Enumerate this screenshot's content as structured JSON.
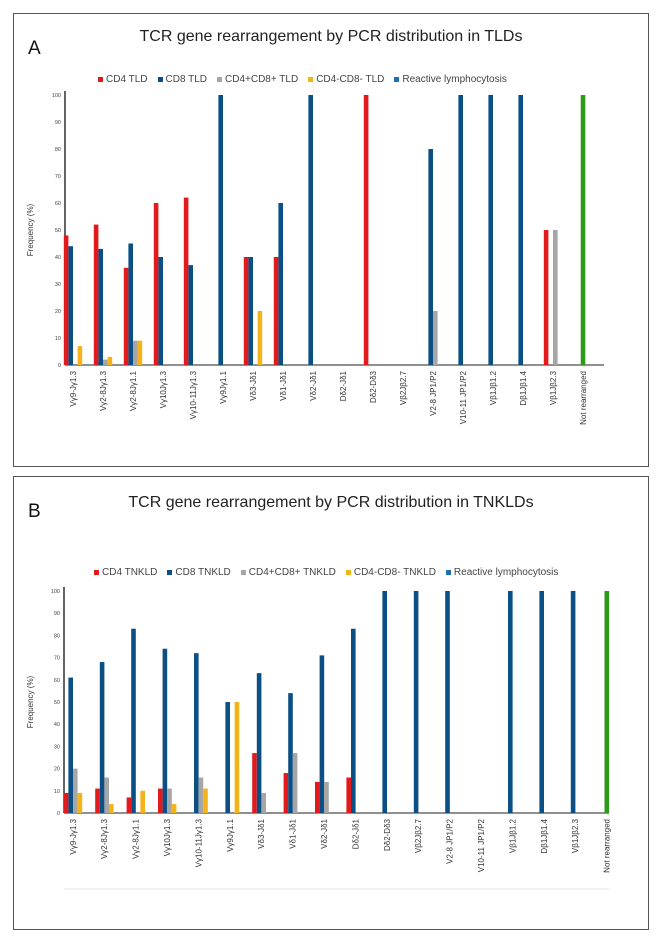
{
  "legend_colors": {
    "cd4": "#e31a1c",
    "cd8": "#0b4f85",
    "dp": "#a6a6a6",
    "dn": "#f5b31a",
    "reactive": "#1f6fb4",
    "not_rearranged": "#2e9a1a"
  },
  "chart_data": [
    {
      "panel": "A",
      "type": "bar",
      "title": "TCR gene rearrangement by PCR distribution in TLDs",
      "ylabel": "Frequency (%)",
      "xlabel": "",
      "ylim": [
        0,
        100
      ],
      "yticks": [
        "0",
        "10",
        "20",
        "30",
        "40",
        "50",
        "60",
        "70",
        "80",
        "90",
        "100"
      ],
      "grid": false,
      "legend_position": "top",
      "categories": [
        "Vγ9-Jγ1.3",
        "Vγ2-8Jγ1.3",
        "Vγ2-8Jγ1.1",
        "Vγ10Jγ1.3",
        "Vγ10-11Jγ1.3",
        "Vγ9Jγ1.1",
        "Vδ3-Jδ1",
        "Vδ1-Jδ1",
        "Vδ2-Jδ1",
        "Dδ2-Jδ1",
        "Dδ2-Dδ3",
        "Vβ2Jβ2.7",
        "V2-8 JP1/P2",
        "V10-11 JP1/P2",
        "Vβ1Jβ1.2",
        "Dβ1Jβ1.4",
        "Vβ1Jβ2.3",
        "Not rearranged"
      ],
      "series": [
        {
          "name": "CD4 TLD",
          "color": "#e31a1c",
          "values": [
            48,
            52,
            36,
            60,
            62,
            0,
            40,
            40,
            0,
            0,
            100,
            0,
            0,
            0,
            0,
            0,
            50,
            0
          ]
        },
        {
          "name": "CD8 TLD",
          "color": "#0b4f85",
          "values": [
            44,
            43,
            45,
            40,
            37,
            100,
            40,
            60,
            100,
            0,
            0,
            0,
            80,
            100,
            100,
            100,
            0,
            0
          ]
        },
        {
          "name": "CD4+CD8+ TLD",
          "color": "#a6a6a6",
          "values": [
            0,
            2,
            9,
            0,
            0,
            0,
            0,
            0,
            0,
            0,
            0,
            0,
            20,
            0,
            0,
            0,
            50,
            0
          ]
        },
        {
          "name": "CD4-CD8- TLD",
          "color": "#f5b31a",
          "values": [
            7,
            3,
            9,
            0,
            0,
            0,
            20,
            0,
            0,
            0,
            0,
            0,
            0,
            0,
            0,
            0,
            0,
            0
          ]
        },
        {
          "name": "Reactive lymphocytosis",
          "color": "#2e9a1a",
          "values": [
            0,
            0,
            0,
            0,
            0,
            0,
            0,
            0,
            0,
            0,
            0,
            0,
            0,
            0,
            0,
            0,
            0,
            100
          ]
        }
      ]
    },
    {
      "panel": "B",
      "type": "bar",
      "title": "TCR gene rearrangement by PCR distribution in TNKLDs",
      "ylabel": "Frequency (%)",
      "xlabel": "",
      "ylim": [
        0,
        100
      ],
      "yticks": [
        "0",
        "10",
        "20",
        "30",
        "40",
        "50",
        "60",
        "70",
        "80",
        "90",
        "100"
      ],
      "grid": false,
      "legend_position": "top",
      "categories": [
        "Vγ9-Jγ1.3",
        "Vγ2-8Jγ1.3",
        "Vγ2-8Jγ1.1",
        "Vγ10Jγ1.3",
        "Vγ10-11Jγ1.3",
        "Vγ9Jγ1.1",
        "Vδ3-Jδ1",
        "Vδ1-Jδ1",
        "Vδ2-Jδ1",
        "Dδ2-Jδ1",
        "Dδ2-Dδ3",
        "Vβ2Jβ2.7",
        "V2-8 JP1/P2",
        "V10-11 JP1/P2",
        "Vβ1Jβ1.2",
        "Dβ1Jβ1.4",
        "Vβ1Jβ2.3",
        "Not rearranged"
      ],
      "series": [
        {
          "name": "CD4 TNKLD",
          "color": "#e31a1c",
          "values": [
            9,
            11,
            7,
            11,
            0,
            0,
            27,
            18,
            14,
            16,
            0,
            0,
            0,
            0,
            0,
            0,
            0,
            0
          ]
        },
        {
          "name": "CD8 TNKLD",
          "color": "#0b4f85",
          "values": [
            61,
            68,
            83,
            74,
            72,
            50,
            63,
            54,
            71,
            83,
            100,
            100,
            100,
            0,
            100,
            100,
            100,
            0
          ]
        },
        {
          "name": "CD4+CD8+ TNKLD",
          "color": "#a6a6a6",
          "values": [
            20,
            16,
            0,
            11,
            16,
            0,
            9,
            27,
            14,
            0,
            0,
            0,
            0,
            0,
            0,
            0,
            0,
            0
          ]
        },
        {
          "name": "CD4-CD8- TNKLD",
          "color": "#f5b31a",
          "values": [
            9,
            4,
            10,
            4,
            11,
            50,
            0,
            0,
            0,
            0,
            0,
            0,
            0,
            0,
            0,
            0,
            0,
            0
          ]
        },
        {
          "name": "Reactive lymphocytosis",
          "color": "#2e9a1a",
          "values": [
            0,
            0,
            0,
            0,
            0,
            0,
            0,
            0,
            0,
            0,
            0,
            0,
            0,
            0,
            0,
            0,
            0,
            100
          ]
        }
      ]
    }
  ],
  "panels": {
    "a": {
      "letter": "A",
      "legend": [
        "CD4 TLD",
        "CD8 TLD",
        "CD4+CD8+ TLD",
        "CD4-CD8- TLD",
        "Reactive lymphocytosis"
      ]
    },
    "b": {
      "letter": "B",
      "legend": [
        "CD4 TNKLD",
        "CD8 TNKLD",
        "CD4+CD8+ TNKLD",
        "CD4-CD8- TNKLD",
        "Reactive lymphocytosis"
      ]
    }
  }
}
